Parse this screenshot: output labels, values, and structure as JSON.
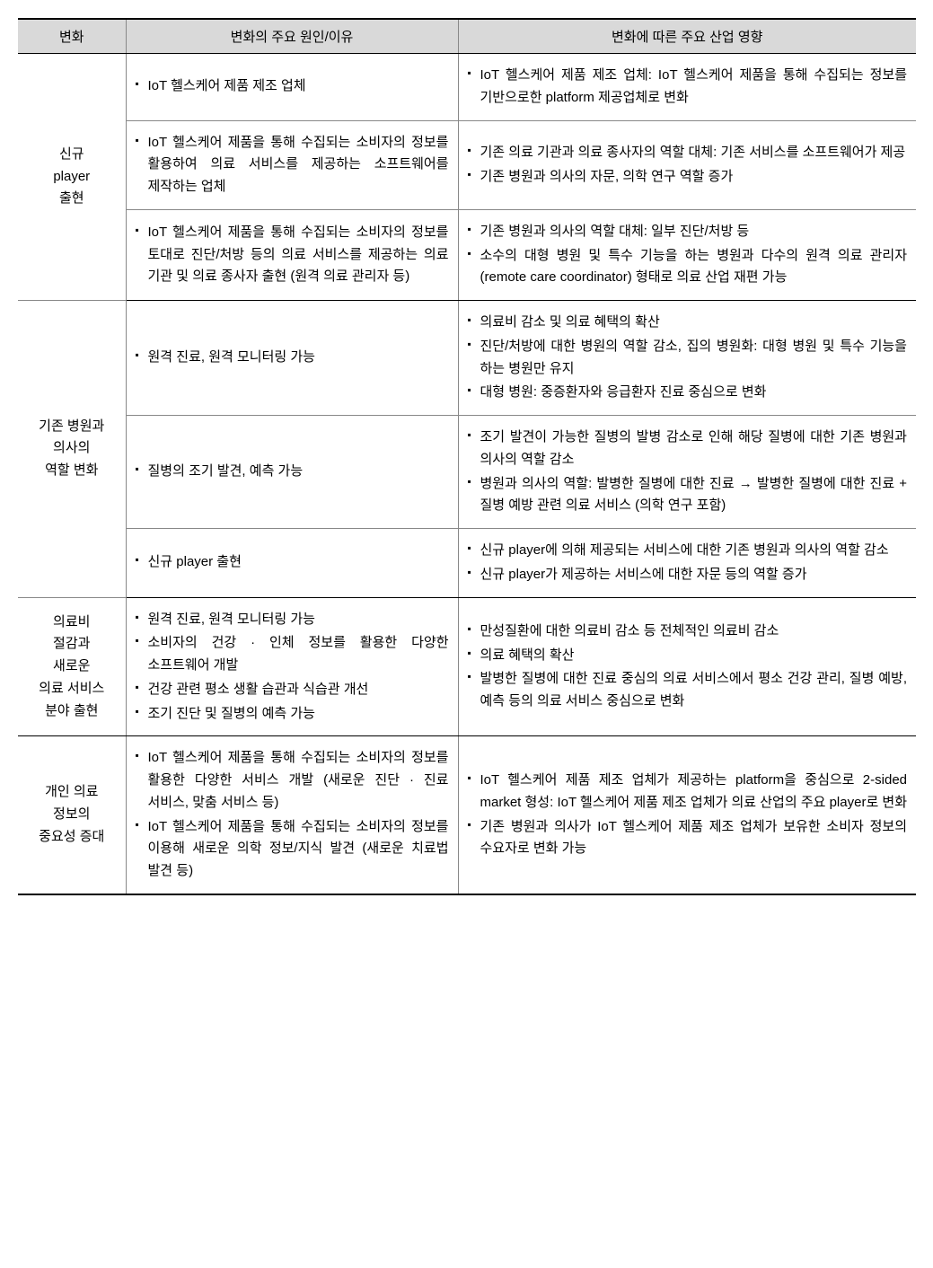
{
  "headers": {
    "c1": "변화",
    "c2": "변화의 주요 원인/이유",
    "c3": "변화에 따른 주요 산업 영향"
  },
  "sections": [
    {
      "category": "신규\nplayer\n출현",
      "rows": [
        {
          "causes": [
            "IoT 헬스케어 제품 제조 업체"
          ],
          "impacts": [
            "IoT 헬스케어 제품 제조 업체: IoT 헬스케어 제품을 통해 수집되는 정보를 기반으로한 platform 제공업체로 변화"
          ]
        },
        {
          "causes": [
            "IoT 헬스케어 제품을 통해 수집되는 소비자의 정보를 활용하여 의료 서비스를 제공하는 소프트웨어를 제작하는 업체"
          ],
          "impacts": [
            "기존 의료 기관과 의료 종사자의 역할 대체: 기존 서비스를 소프트웨어가 제공",
            "기존 병원과 의사의 자문, 의학 연구 역할 증가"
          ]
        },
        {
          "causes": [
            "IoT 헬스케어 제품을 통해 수집되는 소비자의 정보를 토대로 진단/처방 등의 의료 서비스를 제공하는 의료 기관 및 의료 종사자 출현 (원격 의료 관리자 등)"
          ],
          "impacts": [
            "기존 병원과 의사의 역할 대체: 일부 진단/처방 등",
            "소수의 대형 병원 및 특수 기능을 하는 병원과 다수의 원격 의료 관리자 (remote care coordinator) 형태로 의료 산업 재편 가능"
          ]
        }
      ]
    },
    {
      "category": "기존 병원과\n의사의\n역할 변화",
      "rows": [
        {
          "causes": [
            "원격 진료, 원격 모니터링 가능"
          ],
          "impacts": [
            "의료비 감소 및 의료 혜택의 확산",
            "진단/처방에 대한 병원의 역할 감소, 집의 병원화: 대형 병원 및 특수 기능을 하는 병원만 유지",
            "대형 병원: 중증환자와 응급환자 진료 중심으로 변화"
          ]
        },
        {
          "causes": [
            "질병의 조기 발견, 예측 가능"
          ],
          "impacts": [
            "조기 발견이 가능한 질병의 발병 감소로 인해 해당 질병에 대한 기존 병원과 의사의 역할 감소",
            "병원과 의사의 역할: 발병한 질병에 대한 진료 → 발병한 질병에 대한 진료 + 질병 예방 관련 의료 서비스 (의학 연구 포함)"
          ]
        },
        {
          "causes": [
            "신규 player 출현"
          ],
          "impacts": [
            "신규 player에 의해 제공되는 서비스에 대한 기존 병원과 의사의 역할 감소",
            "신규 player가 제공하는 서비스에 대한 자문 등의 역할 증가"
          ]
        }
      ]
    },
    {
      "category": "의료비\n절감과\n새로운\n의료 서비스\n분야 출현",
      "rows": [
        {
          "causes": [
            "원격 진료, 원격 모니터링 가능",
            "소비자의 건강 · 인체 정보를 활용한 다양한 소프트웨어 개발",
            "건강 관련 평소 생활 습관과 식습관 개선",
            "조기 진단 및 질병의 예측 가능"
          ],
          "impacts": [
            "만성질환에 대한 의료비 감소 등 전체적인 의료비 감소",
            "의료 혜택의 확산",
            "발병한 질병에 대한 진료 중심의 의료 서비스에서 평소 건강 관리, 질병 예방, 예측 등의 의료 서비스 중심으로 변화"
          ]
        }
      ]
    },
    {
      "category": "개인 의료\n정보의\n중요성 증대",
      "rows": [
        {
          "causes": [
            "IoT 헬스케어 제품을 통해 수집되는 소비자의 정보를 활용한 다양한 서비스 개발 (새로운 진단 · 진료 서비스, 맞춤 서비스 등)",
            "IoT 헬스케어 제품을 통해 수집되는 소비자의 정보를 이용해 새로운 의학 정보/지식 발견 (새로운 치료법 발견 등)"
          ],
          "impacts": [
            "IoT 헬스케어 제품 제조 업체가 제공하는 platform을 중심으로 2-sided market 형성: IoT 헬스케어 제품 제조 업체가 의료 산업의 주요 player로 변화",
            "기존 병원과 의사가 IoT 헬스케어 제품 제조 업체가 보유한 소비자 정보의 수요자로 변화 가능"
          ]
        }
      ]
    }
  ]
}
